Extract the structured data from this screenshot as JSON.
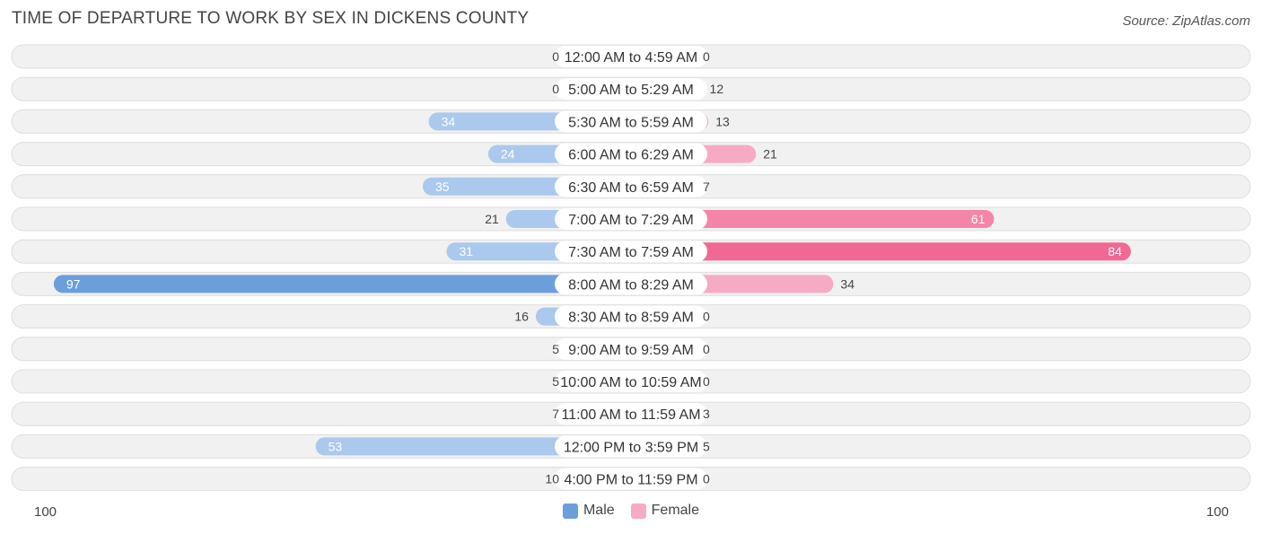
{
  "title": "TIME OF DEPARTURE TO WORK BY SEX IN DICKENS COUNTY",
  "source": "Source: ZipAtlas.com",
  "axis": {
    "left_label": "100",
    "right_label": "100"
  },
  "legend": {
    "male_label": "Male",
    "female_label": "Female"
  },
  "colors": {
    "male_light": "#aac9ec",
    "male_strong": "#6a9fdc",
    "female_light": "#f7aac4",
    "female_strong": "#f06893"
  },
  "chart_data": {
    "type": "bar",
    "orientation": "horizontal-diverging",
    "title": "TIME OF DEPARTURE TO WORK BY SEX IN DICKENS COUNTY",
    "xlim": [
      -100,
      100
    ],
    "categories": [
      "12:00 AM to 4:59 AM",
      "5:00 AM to 5:29 AM",
      "5:30 AM to 5:59 AM",
      "6:00 AM to 6:29 AM",
      "6:30 AM to 6:59 AM",
      "7:00 AM to 7:29 AM",
      "7:30 AM to 7:59 AM",
      "8:00 AM to 8:29 AM",
      "8:30 AM to 8:59 AM",
      "9:00 AM to 9:59 AM",
      "10:00 AM to 10:59 AM",
      "11:00 AM to 11:59 AM",
      "12:00 PM to 3:59 PM",
      "4:00 PM to 11:59 PM"
    ],
    "series": [
      {
        "name": "Male",
        "values": [
          0,
          0,
          34,
          24,
          35,
          21,
          31,
          97,
          16,
          5,
          5,
          7,
          53,
          10
        ]
      },
      {
        "name": "Female",
        "values": [
          0,
          12,
          13,
          21,
          7,
          61,
          84,
          34,
          0,
          0,
          0,
          3,
          5,
          0
        ]
      }
    ],
    "legend": "bottom-center"
  }
}
